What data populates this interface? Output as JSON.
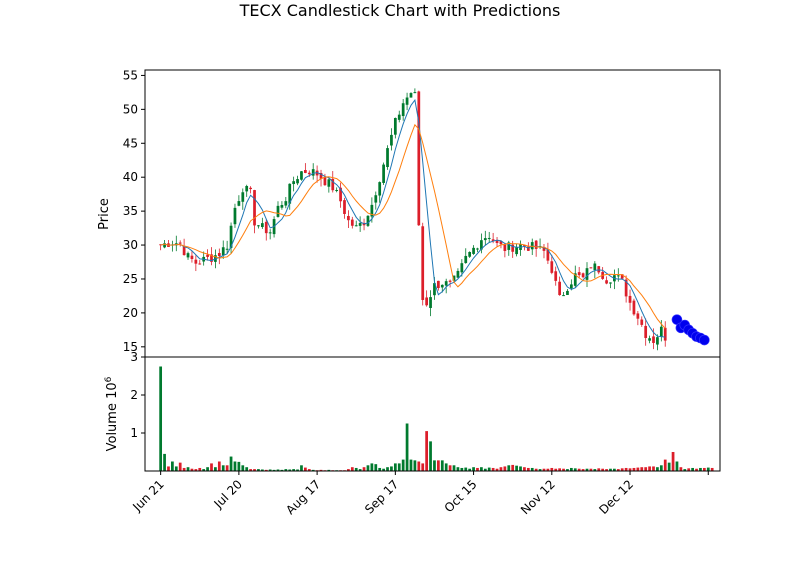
{
  "chart_data": {
    "type": "candlestick",
    "title": "TECX Candlestick Chart with Predictions",
    "price_panel": {
      "ylabel": "Price",
      "ylim": [
        13.5,
        55.8
      ],
      "yticks": [
        15,
        20,
        25,
        30,
        35,
        40,
        45,
        50,
        55
      ]
    },
    "volume_panel": {
      "ylabel": "Volume  10",
      "ylabel_exponent": "6",
      "ylim": [
        0,
        3.0
      ],
      "yticks": [
        1,
        2,
        3
      ],
      "ytick_labels": [
        "1",
        "2",
        "3"
      ]
    },
    "x_axis": {
      "range": [
        -4,
        143
      ],
      "ticks": [
        0,
        20,
        40,
        60,
        80,
        100,
        120,
        140
      ],
      "tick_labels": [
        "Jun 21",
        "Jul 20",
        "Aug 17",
        "Sep 17",
        "Oct 15",
        "Nov 12",
        "Dec 12",
        ""
      ]
    },
    "colors": {
      "up": "#007a2e",
      "down": "#dc1e2a",
      "ma_fast": "#1f77b4",
      "ma_slow": "#ff7f0e",
      "prediction": "#0000ee"
    },
    "anchors": [
      [
        0,
        30.0
      ],
      [
        3,
        30.5
      ],
      [
        5,
        30.2
      ],
      [
        7,
        28.2
      ],
      [
        9,
        27.4
      ],
      [
        11,
        27.8
      ],
      [
        13,
        28.2
      ],
      [
        15,
        28.8
      ],
      [
        17,
        30.0
      ],
      [
        19,
        35.5
      ],
      [
        21,
        38.5
      ],
      [
        23,
        37.5
      ],
      [
        24,
        33.5
      ],
      [
        26,
        32.5
      ],
      [
        28,
        32.0
      ],
      [
        30,
        35.5
      ],
      [
        32,
        37.0
      ],
      [
        34,
        39.5
      ],
      [
        36,
        40.8
      ],
      [
        38,
        41.0
      ],
      [
        40,
        40.5
      ],
      [
        42,
        39.5
      ],
      [
        44,
        38.5
      ],
      [
        46,
        36.5
      ],
      [
        48,
        33.5
      ],
      [
        50,
        32.5
      ],
      [
        52,
        33.5
      ],
      [
        54,
        36.0
      ],
      [
        56,
        40.0
      ],
      [
        58,
        44.0
      ],
      [
        60,
        48.0
      ],
      [
        62,
        51.0
      ],
      [
        64,
        52.5
      ],
      [
        65,
        52.0
      ],
      [
        66,
        33.0
      ],
      [
        67,
        22.0
      ],
      [
        68,
        21.5
      ],
      [
        70,
        24.0
      ],
      [
        72,
        24.5
      ],
      [
        74,
        24.0
      ],
      [
        76,
        25.5
      ],
      [
        78,
        28.0
      ],
      [
        80,
        29.5
      ],
      [
        82,
        31.0
      ],
      [
        84,
        31.5
      ],
      [
        86,
        30.0
      ],
      [
        88,
        29.5
      ],
      [
        90,
        29.8
      ],
      [
        92,
        30.0
      ],
      [
        94,
        29.8
      ],
      [
        96,
        29.5
      ],
      [
        98,
        29.0
      ],
      [
        100,
        26.5
      ],
      [
        102,
        22.0
      ],
      [
        104,
        24.0
      ],
      [
        106,
        25.5
      ],
      [
        108,
        25.0
      ],
      [
        110,
        27.0
      ],
      [
        112,
        26.5
      ],
      [
        114,
        25.0
      ],
      [
        116,
        25.5
      ],
      [
        118,
        24.5
      ],
      [
        120,
        21.5
      ],
      [
        122,
        19.5
      ],
      [
        124,
        17.0
      ],
      [
        126,
        16.0
      ],
      [
        128,
        17.5
      ],
      [
        129,
        16.5
      ]
    ],
    "volume_values": [
      2.75,
      0.45,
      0.12,
      0.25,
      0.12,
      0.22,
      0.08,
      0.1,
      0.06,
      0.05,
      0.08,
      0.05,
      0.1,
      0.2,
      0.1,
      0.25,
      0.15,
      0.15,
      0.38,
      0.25,
      0.24,
      0.15,
      0.1,
      0.05,
      0.05,
      0.05,
      0.04,
      0.03,
      0.04,
      0.03,
      0.04,
      0.03,
      0.05,
      0.04,
      0.05,
      0.04,
      0.15,
      0.09,
      0.05,
      0.03,
      0.02,
      0.03,
      0.02,
      0.03,
      0.02,
      0.02,
      0.02,
      0.02,
      0.05,
      0.1,
      0.08,
      0.05,
      0.1,
      0.15,
      0.2,
      0.18,
      0.08,
      0.06,
      0.1,
      0.12,
      0.2,
      0.2,
      0.3,
      1.25,
      0.3,
      0.28,
      0.25,
      0.2,
      1.05,
      0.78,
      0.28,
      0.28,
      0.28,
      0.2,
      0.15,
      0.15,
      0.1,
      0.08,
      0.09,
      0.06,
      0.1,
      0.08,
      0.1,
      0.06,
      0.09,
      0.08,
      0.06,
      0.1,
      0.12,
      0.15,
      0.16,
      0.14,
      0.12,
      0.1,
      0.08,
      0.08,
      0.06,
      0.05,
      0.06,
      0.06,
      0.08,
      0.06,
      0.07,
      0.06,
      0.05,
      0.08,
      0.07,
      0.06,
      0.05,
      0.06,
      0.06,
      0.05,
      0.07,
      0.06,
      0.05,
      0.06,
      0.06,
      0.05,
      0.07,
      0.08,
      0.07,
      0.08,
      0.09,
      0.1,
      0.1,
      0.12,
      0.12,
      0.1,
      0.15,
      0.3,
      0.22,
      0.5,
      0.25,
      0.1,
      0.05,
      0.07,
      0.08,
      0.06,
      0.08,
      0.08,
      0.09,
      0.08
    ],
    "predictions": [
      [
        132,
        19.0
      ],
      [
        133,
        17.8
      ],
      [
        134,
        18.2
      ],
      [
        135,
        17.5
      ],
      [
        136,
        17.0
      ],
      [
        137,
        16.5
      ],
      [
        138,
        16.3
      ],
      [
        139,
        16.0
      ]
    ]
  }
}
